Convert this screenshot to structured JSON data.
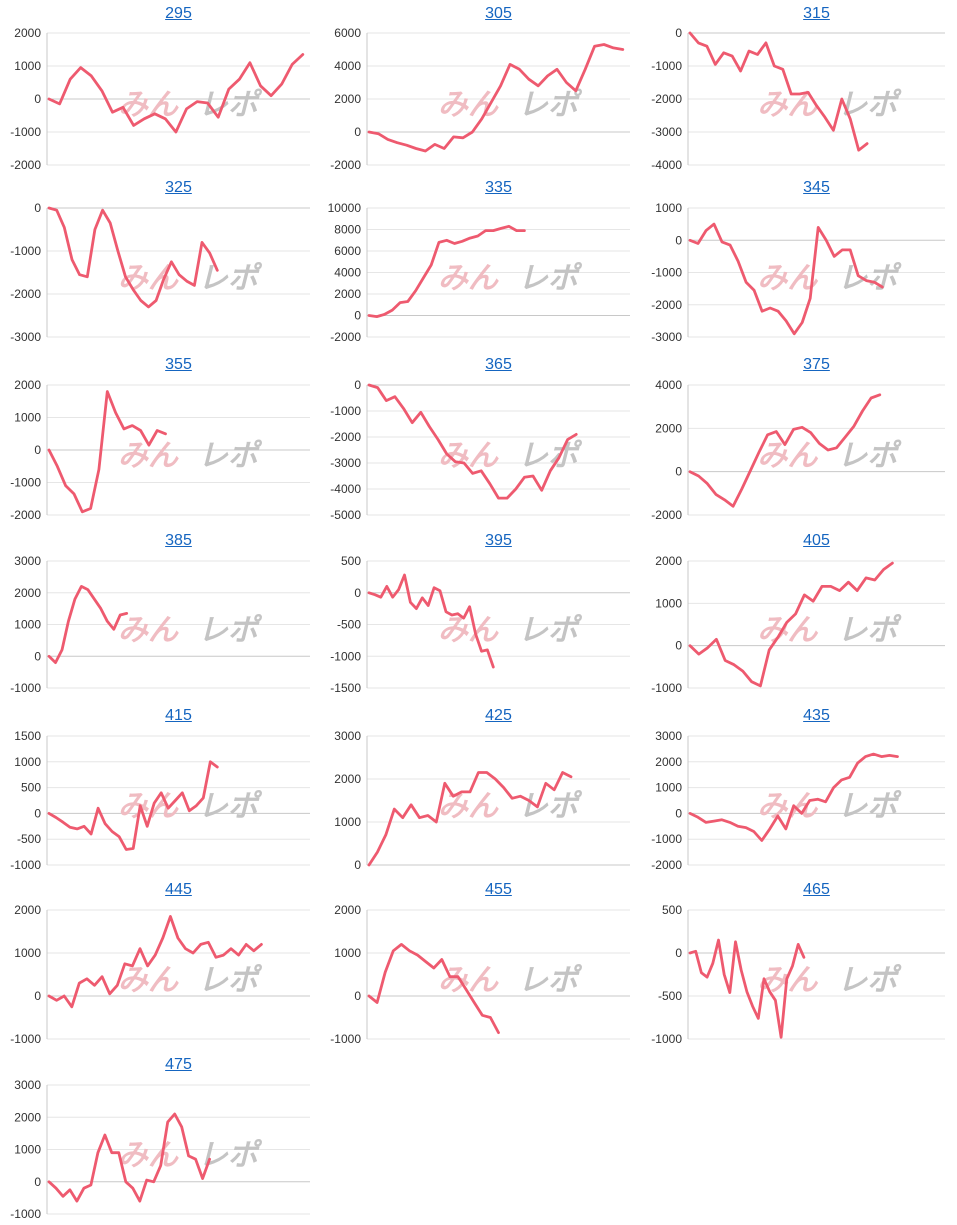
{
  "colors": {
    "line": "#ee5a6f",
    "grid": "#e6e6e6",
    "axis": "#c8c8c8",
    "title": "#1565c0",
    "watermark_red": "#f0bcc2",
    "watermark_gray": "#c4c4c4"
  },
  "watermark": "みんレポ",
  "chart_data": [
    {
      "type": "line",
      "title": "295",
      "yticks": [
        2000,
        1000,
        0,
        -1000,
        -2000
      ],
      "ylim": [
        -2000,
        2000
      ],
      "grid": true,
      "values": [
        0,
        -150,
        600,
        950,
        700,
        250,
        -400,
        -250,
        -800,
        -600,
        -450,
        -600,
        -1000,
        -300,
        -80,
        -120,
        -550,
        300,
        600,
        1100,
        400,
        100,
        450,
        1050,
        1350
      ]
    },
    {
      "type": "line",
      "title": "305",
      "yticks": [
        6000,
        4000,
        2000,
        0,
        -2000
      ],
      "ylim": [
        -2000,
        6000
      ],
      "grid": true,
      "values": [
        0,
        -100,
        -450,
        -650,
        -800,
        -1000,
        -1150,
        -750,
        -1000,
        -300,
        -350,
        0,
        800,
        1800,
        2800,
        4100,
        3800,
        3200,
        2800,
        3400,
        3800,
        3000,
        2500,
        3800,
        5200,
        5300,
        5100,
        5000
      ]
    },
    {
      "type": "line",
      "title": "315",
      "yticks": [
        0,
        -1000,
        -2000,
        -3000,
        -4000
      ],
      "ylim": [
        -4000,
        0
      ],
      "grid": true,
      "values": [
        0,
        -300,
        -400,
        -950,
        -600,
        -700,
        -1150,
        -550,
        -650,
        -300,
        -1000,
        -1100,
        -1850,
        -1850,
        -1800,
        -2200,
        -2550,
        -2950,
        -2000,
        -2600,
        -3550,
        -3350
      ]
    },
    {
      "type": "line",
      "title": "325",
      "yticks": [
        0,
        -1000,
        -2000,
        -3000
      ],
      "ylim": [
        -3000,
        0
      ],
      "grid": true,
      "values": [
        0,
        -50,
        -450,
        -1200,
        -1550,
        -1600,
        -500,
        -50,
        -350,
        -1000,
        -1600,
        -1900,
        -2150,
        -2300,
        -2150,
        -1650,
        -1250,
        -1550,
        -1700,
        -1800,
        -800,
        -1050,
        -1450
      ]
    },
    {
      "type": "line",
      "title": "335",
      "yticks": [
        10000,
        8000,
        6000,
        4000,
        2000,
        0,
        -2000
      ],
      "ylim": [
        -2000,
        10000
      ],
      "grid": true,
      "values": [
        0,
        -100,
        100,
        500,
        1200,
        1300,
        2300,
        3500,
        4700,
        6800,
        7000,
        6700,
        6900,
        7200,
        7400,
        7900,
        7900,
        8100,
        8300,
        7900,
        7900
      ]
    },
    {
      "type": "line",
      "title": "345",
      "yticks": [
        1000,
        0,
        -1000,
        -2000,
        -3000
      ],
      "ylim": [
        -3000,
        1000
      ],
      "grid": true,
      "values": [
        0,
        -100,
        300,
        500,
        -50,
        -150,
        -650,
        -1300,
        -1550,
        -2200,
        -2100,
        -2200,
        -2500,
        -2900,
        -2550,
        -1800,
        400,
        0,
        -500,
        -300,
        -300,
        -1100,
        -1250,
        -1300,
        -1450
      ]
    },
    {
      "type": "line",
      "title": "355",
      "yticks": [
        2000,
        1000,
        0,
        -1000,
        -2000
      ],
      "ylim": [
        -2000,
        2000
      ],
      "grid": true,
      "values": [
        0,
        -500,
        -1100,
        -1350,
        -1900,
        -1800,
        -600,
        1800,
        1150,
        650,
        750,
        600,
        150,
        600,
        500
      ]
    },
    {
      "type": "line",
      "title": "365",
      "yticks": [
        0,
        -1000,
        -2000,
        -3000,
        -4000,
        -5000
      ],
      "ylim": [
        -5000,
        0
      ],
      "grid": true,
      "values": [
        0,
        -100,
        -600,
        -450,
        -900,
        -1450,
        -1050,
        -1600,
        -2100,
        -2650,
        -2950,
        -3000,
        -3400,
        -3300,
        -3800,
        -4350,
        -4350,
        -4000,
        -3550,
        -3500,
        -4050,
        -3300,
        -2800,
        -2100,
        -1900
      ]
    },
    {
      "type": "line",
      "title": "375",
      "yticks": [
        4000,
        2000,
        0,
        -2000
      ],
      "ylim": [
        -2000,
        4000
      ],
      "grid": true,
      "values": [
        0,
        -200,
        -550,
        -1050,
        -1300,
        -1600,
        -800,
        50,
        900,
        1700,
        1850,
        1250,
        1950,
        2050,
        1800,
        1300,
        1000,
        1100,
        1600,
        2100,
        2800,
        3400,
        3550
      ]
    },
    {
      "type": "line",
      "title": "385",
      "yticks": [
        3000,
        2000,
        1000,
        0,
        -1000
      ],
      "ylim": [
        -1000,
        3000
      ],
      "grid": true,
      "values": [
        0,
        -200,
        200,
        1100,
        1800,
        2200,
        2100,
        1800,
        1500,
        1100,
        850,
        1300,
        1350
      ]
    },
    {
      "type": "line",
      "title": "395",
      "yticks": [
        500,
        0,
        -500,
        -1000,
        -1500
      ],
      "ylim": [
        -1500,
        500
      ],
      "grid": true,
      "values": [
        0,
        -30,
        -70,
        100,
        -70,
        50,
        280,
        -150,
        -250,
        -80,
        -200,
        80,
        30,
        -300,
        -350,
        -330,
        -400,
        -220,
        -650,
        -920,
        -900,
        -1170
      ]
    },
    {
      "type": "line",
      "title": "405",
      "yticks": [
        2000,
        1000,
        0,
        -1000
      ],
      "ylim": [
        -1000,
        2000
      ],
      "grid": true,
      "values": [
        0,
        -200,
        -50,
        150,
        -350,
        -450,
        -600,
        -850,
        -950,
        -100,
        200,
        550,
        750,
        1200,
        1050,
        1400,
        1400,
        1300,
        1500,
        1300,
        1600,
        1550,
        1800,
        1950
      ]
    },
    {
      "type": "line",
      "title": "415",
      "yticks": [
        1500,
        1000,
        500,
        0,
        -500,
        -1000
      ],
      "ylim": [
        -1000,
        1500
      ],
      "grid": true,
      "values": [
        0,
        -80,
        -170,
        -270,
        -300,
        -250,
        -400,
        100,
        -200,
        -350,
        -450,
        -700,
        -680,
        150,
        -250,
        200,
        400,
        100,
        250,
        400,
        50,
        150,
        300,
        1000,
        900
      ]
    },
    {
      "type": "line",
      "title": "425",
      "yticks": [
        3000,
        2000,
        1000,
        0
      ],
      "ylim": [
        0,
        3000
      ],
      "grid": true,
      "values": [
        0,
        300,
        700,
        1300,
        1100,
        1400,
        1100,
        1150,
        1000,
        1900,
        1600,
        1700,
        1700,
        2150,
        2150,
        2000,
        1800,
        1550,
        1600,
        1500,
        1350,
        1900,
        1750,
        2150,
        2050
      ]
    },
    {
      "type": "line",
      "title": "435",
      "yticks": [
        3000,
        2000,
        1000,
        0,
        -1000,
        -2000
      ],
      "ylim": [
        -2000,
        3000
      ],
      "grid": true,
      "values": [
        0,
        -150,
        -350,
        -300,
        -250,
        -350,
        -500,
        -550,
        -700,
        -1050,
        -600,
        -100,
        -600,
        300,
        0,
        500,
        550,
        450,
        1000,
        1300,
        1400,
        1950,
        2200,
        2300,
        2200,
        2250,
        2200
      ]
    },
    {
      "type": "line",
      "title": "445",
      "yticks": [
        2000,
        1000,
        0,
        -1000
      ],
      "ylim": [
        -1000,
        2000
      ],
      "grid": true,
      "values": [
        0,
        -100,
        0,
        -250,
        300,
        400,
        250,
        450,
        50,
        250,
        750,
        700,
        1100,
        700,
        950,
        1350,
        1850,
        1350,
        1100,
        1000,
        1200,
        1250,
        900,
        950,
        1100,
        950,
        1200,
        1050,
        1200
      ]
    },
    {
      "type": "line",
      "title": "455",
      "yticks": [
        2000,
        1000,
        0,
        -1000
      ],
      "ylim": [
        -1000,
        2000
      ],
      "grid": true,
      "values": [
        0,
        -150,
        550,
        1050,
        1200,
        1050,
        950,
        800,
        650,
        850,
        450,
        450,
        150,
        -150,
        -450,
        -500,
        -850
      ]
    },
    {
      "type": "line",
      "title": "465",
      "yticks": [
        500,
        0,
        -500,
        -1000
      ],
      "ylim": [
        -1000,
        500
      ],
      "grid": true,
      "values": [
        0,
        20,
        -230,
        -280,
        -120,
        150,
        -250,
        -460,
        130,
        -200,
        -450,
        -620,
        -760,
        -300,
        -450,
        -550,
        -980,
        -300,
        -150,
        100,
        -50
      ]
    },
    {
      "type": "line",
      "title": "475",
      "yticks": [
        3000,
        2000,
        1000,
        0,
        -1000
      ],
      "ylim": [
        -1000,
        3000
      ],
      "grid": true,
      "values": [
        0,
        -200,
        -450,
        -250,
        -600,
        -200,
        -100,
        900,
        1450,
        900,
        900,
        0,
        -200,
        -600,
        50,
        0,
        500,
        1850,
        2100,
        1700,
        800,
        700,
        100,
        700
      ]
    }
  ]
}
